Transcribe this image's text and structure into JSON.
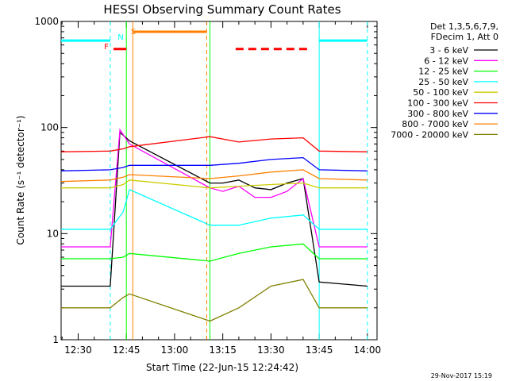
{
  "chart_data": {
    "type": "line",
    "title": "HESSI Observing Summary Count Rates",
    "xlabel": "Start Time (22-Jun-15 12:24:42)",
    "ylabel": "Count Rate (s⁻¹ detector⁻¹)",
    "yscale": "log",
    "xlim": [
      "12:24:42",
      "14:03:00"
    ],
    "ylim": [
      1,
      1000
    ],
    "x_ticks": [
      "12:30",
      "12:45",
      "13:00",
      "13:15",
      "13:30",
      "13:45",
      "14:00"
    ],
    "y_ticks": [
      "1",
      "10",
      "100",
      "1000"
    ],
    "legend_header": [
      "Det 1,3,5,6,7,9,",
      "FDecim 1, Att 0"
    ],
    "legend_position": "right",
    "footer": "29-Nov-2017 15:19",
    "series": [
      {
        "name": "3 - 6 keV",
        "color": "#000000",
        "x": [
          "12:24:42",
          "12:40",
          "12:43",
          "12:46",
          "13:11",
          "13:15",
          "13:20",
          "13:25",
          "13:30",
          "13:35",
          "13:40",
          "13:45",
          "14:00"
        ],
        "y": [
          3.2,
          3.2,
          90,
          75,
          30,
          30,
          32,
          27,
          26,
          30,
          33,
          3.5,
          3.2
        ]
      },
      {
        "name": "6 - 12 keV",
        "color": "#ff00ff",
        "x": [
          "12:24:42",
          "12:40",
          "12:43",
          "12:46",
          "13:11",
          "13:15",
          "13:20",
          "13:25",
          "13:30",
          "13:35",
          "13:40",
          "13:45",
          "14:00"
        ],
        "y": [
          7.5,
          7.5,
          95,
          70,
          27,
          25,
          28,
          22,
          22,
          25,
          33,
          7.5,
          7.5
        ]
      },
      {
        "name": "12 - 25 keV",
        "color": "#00ff00",
        "x": [
          "12:24:42",
          "12:40",
          "12:44",
          "12:46",
          "13:11",
          "13:20",
          "13:30",
          "13:40",
          "13:45",
          "14:00"
        ],
        "y": [
          5.8,
          5.8,
          6,
          6.5,
          5.5,
          6.5,
          7.5,
          8,
          5.8,
          5.8
        ]
      },
      {
        "name": "25 - 50 keV",
        "color": "#00ffff",
        "x": [
          "12:24:42",
          "12:40",
          "12:44",
          "12:46",
          "13:11",
          "13:20",
          "13:30",
          "13:40",
          "13:45",
          "14:00"
        ],
        "y": [
          11,
          11,
          16,
          26,
          12,
          12,
          14,
          15,
          11,
          11
        ]
      },
      {
        "name": "50 - 100 keV",
        "color": "#cccc00",
        "x": [
          "12:24:42",
          "12:40",
          "12:44",
          "12:46",
          "13:11",
          "13:20",
          "13:30",
          "13:40",
          "13:45",
          "14:00"
        ],
        "y": [
          27,
          27,
          29,
          32,
          27,
          28,
          29,
          30,
          27,
          27
        ]
      },
      {
        "name": "100 - 300 keV",
        "color": "#ff0000",
        "x": [
          "12:24:42",
          "12:40",
          "12:44",
          "12:46",
          "13:11",
          "13:20",
          "13:30",
          "13:40",
          "13:45",
          "14:00"
        ],
        "y": [
          59,
          60,
          63,
          66,
          82,
          73,
          78,
          80,
          60,
          59
        ]
      },
      {
        "name": "300 - 800 keV",
        "color": "#0000ff",
        "x": [
          "12:24:42",
          "12:40",
          "12:44",
          "12:46",
          "13:11",
          "13:20",
          "13:30",
          "13:40",
          "13:45",
          "14:00"
        ],
        "y": [
          39,
          40,
          42,
          44,
          44,
          46,
          50,
          52,
          40,
          39
        ]
      },
      {
        "name": "800 - 7000 keV",
        "color": "#ff8000",
        "x": [
          "12:24:42",
          "12:40",
          "12:44",
          "12:46",
          "13:11",
          "13:20",
          "13:30",
          "13:40",
          "13:45",
          "14:00"
        ],
        "y": [
          31,
          32,
          34,
          36,
          33,
          35,
          38,
          40,
          33,
          32
        ]
      },
      {
        "name": "7000 - 20000 keV",
        "color": "#808000",
        "x": [
          "12:24:42",
          "12:40",
          "12:44",
          "12:46",
          "13:11",
          "13:20",
          "13:30",
          "13:40",
          "13:45",
          "14:00"
        ],
        "y": [
          2,
          2,
          2.5,
          2.7,
          1.5,
          2,
          3.2,
          3.7,
          2,
          2
        ]
      }
    ],
    "annotations": [
      {
        "label": "N",
        "color": "#00ffff",
        "x_start": "12:24:42",
        "x_end": "12:40",
        "y": 660,
        "style": "solid"
      },
      {
        "label": "",
        "color": "#00ffff",
        "x_start": "13:45",
        "x_end": "14:00",
        "y": 660,
        "style": "solid"
      },
      {
        "label": "F",
        "color": "#ff0000",
        "x_start": "12:41",
        "x_end": "12:45",
        "y": 550,
        "style": "solid"
      },
      {
        "label": "S",
        "color": "#ff8000",
        "x_start": "12:47",
        "x_end": "13:10",
        "y": 800,
        "style": "solid"
      },
      {
        "label": "",
        "color": "#ff0000",
        "x_start": "13:19",
        "x_end": "13:42",
        "y": 550,
        "style": "dashed"
      }
    ],
    "vertical_markers": [
      {
        "x": "12:40",
        "color": "#00ffff",
        "style": "dashed"
      },
      {
        "x": "12:45",
        "color": "#00ff00",
        "style": "solid"
      },
      {
        "x": "12:47",
        "color": "#ff8000",
        "style": "solid"
      },
      {
        "x": "13:10",
        "color": "#ff8000",
        "style": "dashed"
      },
      {
        "x": "13:11",
        "color": "#00ff00",
        "style": "solid"
      },
      {
        "x": "13:45",
        "color": "#00ffff",
        "style": "solid"
      },
      {
        "x": "14:00",
        "color": "#00ffff",
        "style": "dashed"
      }
    ]
  }
}
